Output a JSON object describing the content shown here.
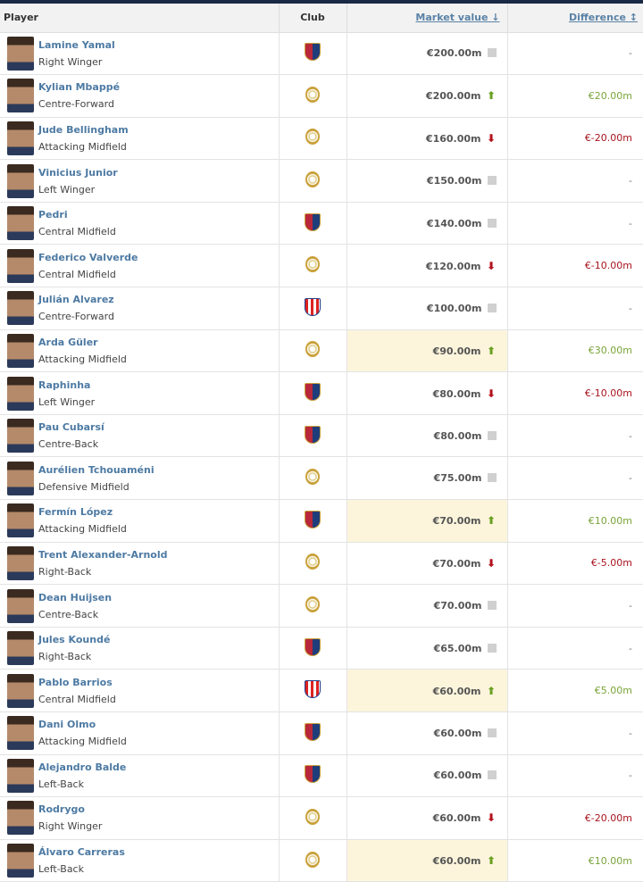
{
  "header": {
    "player": "Player",
    "club": "Club",
    "market_value": "Market value ↓",
    "difference": "Difference ↕"
  },
  "colors": {
    "up": "#6aa021",
    "down": "#b4111c",
    "link": "#4d7aa3",
    "highlight": "#fcf5dc"
  },
  "rows": [
    {
      "name": "Lamine Yamal",
      "position": "Right Winger",
      "club": "fc-barcelona-crest",
      "value": "€200.00m",
      "trend": "same",
      "diff": "-",
      "hl": false
    },
    {
      "name": "Kylian Mbappé",
      "position": "Centre-Forward",
      "club": "real-madrid-crest",
      "value": "€200.00m",
      "trend": "up",
      "diff": "€20.00m",
      "hl": false
    },
    {
      "name": "Jude Bellingham",
      "position": "Attacking Midfield",
      "club": "real-madrid-crest",
      "value": "€160.00m",
      "trend": "down",
      "diff": "€-20.00m",
      "hl": false
    },
    {
      "name": "Vinicius Junior",
      "position": "Left Winger",
      "club": "real-madrid-crest",
      "value": "€150.00m",
      "trend": "same",
      "diff": "-",
      "hl": false
    },
    {
      "name": "Pedri",
      "position": "Central Midfield",
      "club": "fc-barcelona-crest",
      "value": "€140.00m",
      "trend": "same",
      "diff": "-",
      "hl": false
    },
    {
      "name": "Federico Valverde",
      "position": "Central Midfield",
      "club": "real-madrid-crest",
      "value": "€120.00m",
      "trend": "down",
      "diff": "€-10.00m",
      "hl": false
    },
    {
      "name": "Julián Alvarez",
      "position": "Centre-Forward",
      "club": "atletico-madrid-crest",
      "value": "€100.00m",
      "trend": "same",
      "diff": "-",
      "hl": false
    },
    {
      "name": "Arda Güler",
      "position": "Attacking Midfield",
      "club": "real-madrid-crest",
      "value": "€90.00m",
      "trend": "up",
      "diff": "€30.00m",
      "hl": true
    },
    {
      "name": "Raphinha",
      "position": "Left Winger",
      "club": "fc-barcelona-crest",
      "value": "€80.00m",
      "trend": "down",
      "diff": "€-10.00m",
      "hl": false
    },
    {
      "name": "Pau Cubarsí",
      "position": "Centre-Back",
      "club": "fc-barcelona-crest",
      "value": "€80.00m",
      "trend": "same",
      "diff": "-",
      "hl": false
    },
    {
      "name": "Aurélien Tchouaméni",
      "position": "Defensive Midfield",
      "club": "real-madrid-crest",
      "value": "€75.00m",
      "trend": "same",
      "diff": "-",
      "hl": false
    },
    {
      "name": "Fermín López",
      "position": "Attacking Midfield",
      "club": "fc-barcelona-crest",
      "value": "€70.00m",
      "trend": "up",
      "diff": "€10.00m",
      "hl": true
    },
    {
      "name": "Trent Alexander-Arnold",
      "position": "Right-Back",
      "club": "real-madrid-crest",
      "value": "€70.00m",
      "trend": "down",
      "diff": "€-5.00m",
      "hl": false
    },
    {
      "name": "Dean Huijsen",
      "position": "Centre-Back",
      "club": "real-madrid-crest",
      "value": "€70.00m",
      "trend": "same",
      "diff": "-",
      "hl": false
    },
    {
      "name": "Jules Koundé",
      "position": "Right-Back",
      "club": "fc-barcelona-crest",
      "value": "€65.00m",
      "trend": "same",
      "diff": "-",
      "hl": false
    },
    {
      "name": "Pablo Barrios",
      "position": "Central Midfield",
      "club": "atletico-madrid-crest",
      "value": "€60.00m",
      "trend": "up",
      "diff": "€5.00m",
      "hl": true
    },
    {
      "name": "Dani Olmo",
      "position": "Attacking Midfield",
      "club": "fc-barcelona-crest",
      "value": "€60.00m",
      "trend": "same",
      "diff": "-",
      "hl": false
    },
    {
      "name": "Alejandro Balde",
      "position": "Left-Back",
      "club": "fc-barcelona-crest",
      "value": "€60.00m",
      "trend": "same",
      "diff": "-",
      "hl": false
    },
    {
      "name": "Rodrygo",
      "position": "Right Winger",
      "club": "real-madrid-crest",
      "value": "€60.00m",
      "trend": "down",
      "diff": "€-20.00m",
      "hl": false
    },
    {
      "name": "Álvaro Carreras",
      "position": "Left-Back",
      "club": "real-madrid-crest",
      "value": "€60.00m",
      "trend": "up",
      "diff": "€10.00m",
      "hl": true
    }
  ]
}
